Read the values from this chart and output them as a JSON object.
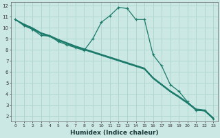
{
  "xlabel": "Humidex (Indice chaleur)",
  "bg_color": "#cce8e4",
  "grid_color": "#b0d8d0",
  "line_color": "#1a7a6a",
  "xlim": [
    -0.5,
    23.5
  ],
  "ylim": [
    1.5,
    12.3
  ],
  "yticks": [
    2,
    3,
    4,
    5,
    6,
    7,
    8,
    9,
    10,
    11,
    12
  ],
  "xticks": [
    0,
    1,
    2,
    3,
    4,
    5,
    6,
    7,
    8,
    9,
    10,
    11,
    12,
    13,
    14,
    15,
    16,
    17,
    18,
    19,
    20,
    21,
    22,
    23
  ],
  "lines": [
    {
      "x": [
        0,
        1,
        2,
        3,
        4,
        5,
        6,
        7,
        8,
        9,
        10,
        11,
        12,
        13,
        14,
        15,
        16,
        17,
        18,
        19,
        20,
        21,
        22,
        23
      ],
      "y": [
        10.75,
        10.2,
        9.85,
        9.3,
        9.25,
        8.75,
        8.45,
        8.2,
        7.95,
        9.0,
        10.5,
        11.1,
        11.85,
        11.75,
        10.75,
        10.75,
        7.55,
        6.55,
        4.85,
        4.25,
        3.3,
        2.5,
        2.5,
        1.75
      ],
      "marker": true
    },
    {
      "x": [
        0,
        1,
        2,
        3,
        4,
        5,
        6,
        7,
        8,
        9,
        10,
        11,
        12,
        13,
        14,
        15,
        16,
        17,
        18,
        19,
        20,
        21,
        22,
        23
      ],
      "y": [
        10.75,
        10.35,
        10.0,
        9.55,
        9.3,
        8.95,
        8.65,
        8.35,
        8.1,
        7.85,
        7.6,
        7.35,
        7.1,
        6.85,
        6.6,
        6.35,
        5.5,
        4.9,
        4.3,
        3.8,
        3.25,
        2.65,
        2.55,
        1.85
      ],
      "marker": false
    },
    {
      "x": [
        0,
        1,
        2,
        3,
        4,
        5,
        6,
        7,
        8,
        9,
        10,
        11,
        12,
        13,
        14,
        15,
        16,
        17,
        18,
        19,
        20,
        21,
        22,
        23
      ],
      "y": [
        10.75,
        10.3,
        9.95,
        9.5,
        9.25,
        8.9,
        8.6,
        8.3,
        8.05,
        7.8,
        7.55,
        7.3,
        7.05,
        6.8,
        6.55,
        6.3,
        5.45,
        4.85,
        4.25,
        3.75,
        3.2,
        2.6,
        2.5,
        1.8
      ],
      "marker": false
    },
    {
      "x": [
        0,
        1,
        2,
        3,
        4,
        5,
        6,
        7,
        8,
        9,
        10,
        11,
        12,
        13,
        14,
        15,
        16,
        17,
        18,
        19,
        20,
        21,
        22,
        23
      ],
      "y": [
        10.75,
        10.25,
        9.9,
        9.45,
        9.2,
        8.85,
        8.55,
        8.25,
        8.0,
        7.75,
        7.5,
        7.25,
        7.0,
        6.75,
        6.5,
        6.25,
        5.4,
        4.8,
        4.2,
        3.7,
        3.15,
        2.55,
        2.45,
        1.75
      ],
      "marker": false
    }
  ]
}
